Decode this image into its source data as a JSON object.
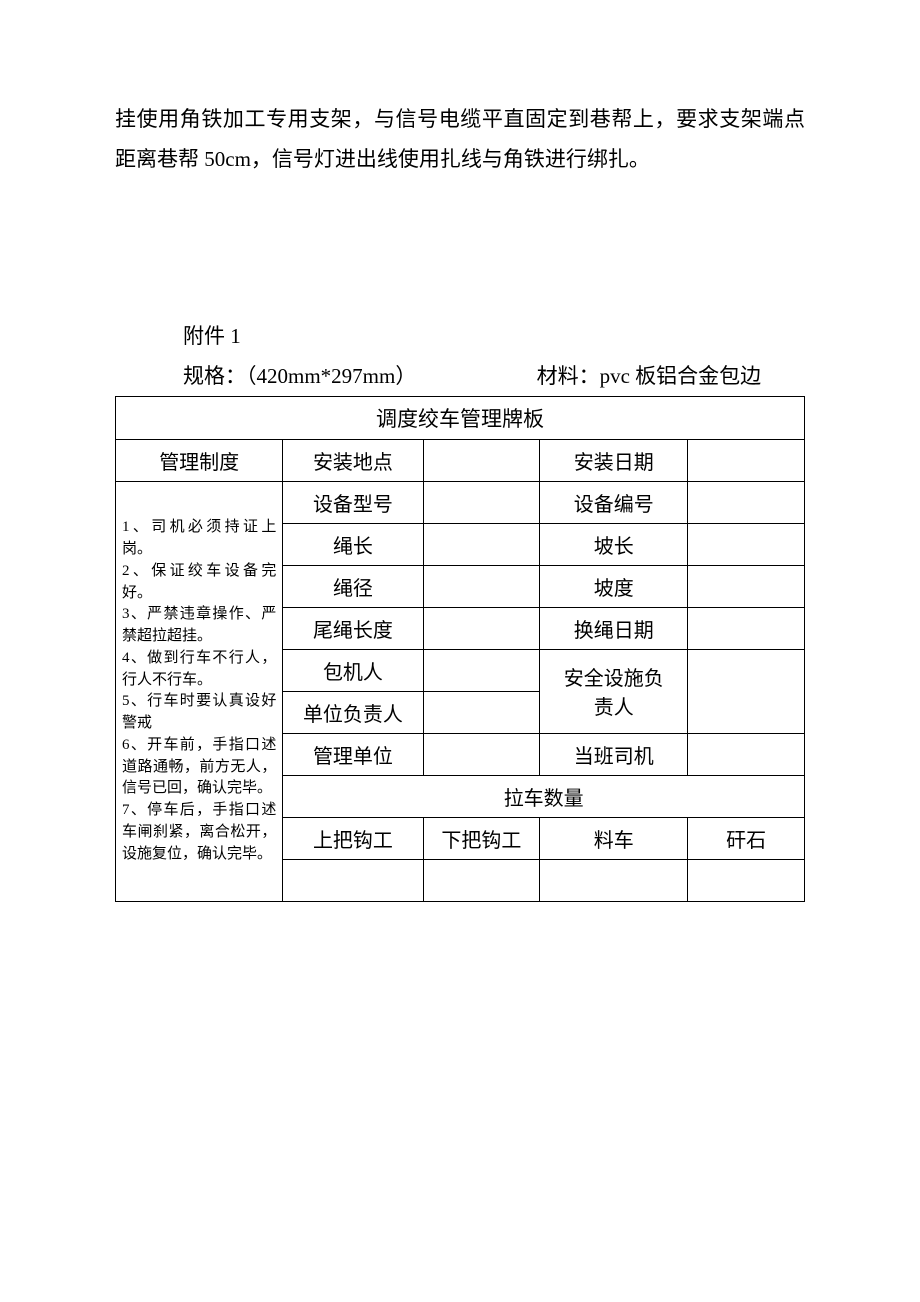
{
  "intro": {
    "paragraph": "挂使用角铁加工专用支架，与信号电缆平直固定到巷帮上，要求支架端点距离巷帮 50cm，信号灯进出线使用扎线与角铁进行绑扎。"
  },
  "attachment": {
    "label": "附件 1",
    "spec_label": "规格：",
    "spec_value": "（420mm*297mm）",
    "material_label": "材料：",
    "material_value": "pvc 板铝合金包边"
  },
  "table": {
    "title": "调度绞车管理牌板",
    "header": {
      "col1": "管理制度",
      "col2": "安装地点",
      "col4": "安装日期"
    },
    "rules_text": "1、司机必须持证上岗。\n2、保证绞车设备完好。\n3、严禁违章操作、严禁超拉超挂。\n4、做到行车不行人，行人不行车。\n5、行车时要认真设好警戒\n6、开车前，手指口述 道路通畅，前方无人，信号已回，确认完毕。\n7、停车后，手指口述 车闸刹紧，离合松开，设施复位，确认完毕。",
    "rows": [
      {
        "l1": "设备型号",
        "l2": "设备编号"
      },
      {
        "l1": "绳长",
        "l2": "坡长"
      },
      {
        "l1": "绳径",
        "l2": "坡度"
      },
      {
        "l1": "尾绳长度",
        "l2": "换绳日期"
      },
      {
        "l1": "包机人",
        "l2_top": "安全设施负"
      },
      {
        "l1": "单位负责人",
        "l2_bottom": "责人"
      },
      {
        "l1": "管理单位",
        "l2": "当班司机"
      }
    ],
    "pull_count": {
      "title": "拉车数量",
      "c1": "上把钩工",
      "c2": "下把钩工",
      "c3": "料车",
      "c4": "矸石"
    }
  },
  "style": {
    "text_color": "#000000",
    "background": "#ffffff",
    "border_color": "#000000",
    "body_fontsize": 21,
    "table_fontsize": 20,
    "rules_fontsize": 15
  }
}
